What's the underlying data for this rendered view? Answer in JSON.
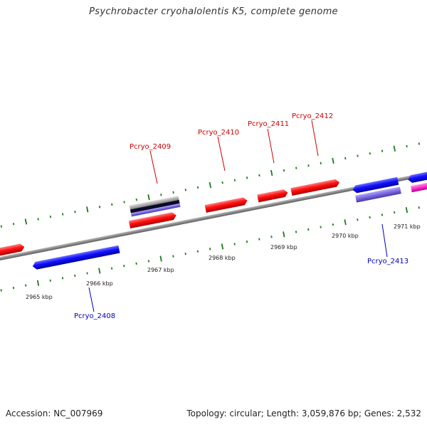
{
  "title": "Psychrobacter cryohalolentis K5, complete genome",
  "footer": {
    "accession": "Accession: NC_007969",
    "summary": "Topology: circular; Length: 3,059,876 bp; Genes: 2,532"
  },
  "colors": {
    "forward_gene": "#ff1a1a",
    "reverse_gene": "#1a1aff",
    "reverse_alt": "#7a6adf",
    "gray_feature": "#a0a0a0",
    "pink_gene": "#ff33cc",
    "tick": "#1a7a1a",
    "backbone": "#8a8a8a",
    "forward_label": "#cc0000",
    "reverse_label": "#0000bb"
  },
  "scale_labels": [
    "2965 kbp",
    "2966 kbp",
    "2967 kbp",
    "2968 kbp",
    "2969 kbp",
    "2970 kbp",
    "2971 kbp"
  ],
  "gene_labels": {
    "forward": [
      "Pcryo_2409",
      "Pcryo_2410",
      "Pcryo_2411",
      "Pcryo_2412"
    ],
    "reverse": [
      "Pcryo_2408",
      "Pcryo_2413"
    ]
  }
}
